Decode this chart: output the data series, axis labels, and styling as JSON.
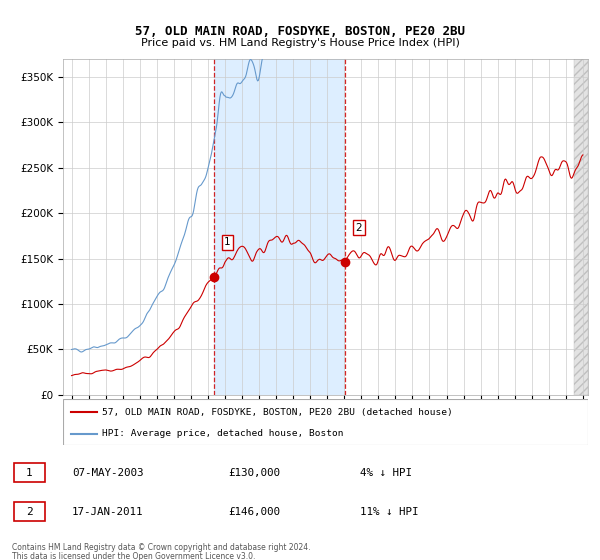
{
  "title1": "57, OLD MAIN ROAD, FOSDYKE, BOSTON, PE20 2BU",
  "title2": "Price paid vs. HM Land Registry's House Price Index (HPI)",
  "ylim": [
    0,
    370000
  ],
  "yticks": [
    0,
    50000,
    100000,
    150000,
    200000,
    250000,
    300000,
    350000
  ],
  "ytick_labels": [
    "£0",
    "£50K",
    "£100K",
    "£150K",
    "£200K",
    "£250K",
    "£300K",
    "£350K"
  ],
  "sale1_price": 130000,
  "sale2_price": 146000,
  "sale1_x": 2003.35,
  "sale2_x": 2011.05,
  "legend_label1": "57, OLD MAIN ROAD, FOSDYKE, BOSTON, PE20 2BU (detached house)",
  "legend_label2": "HPI: Average price, detached house, Boston",
  "footer1": "Contains HM Land Registry data © Crown copyright and database right 2024.",
  "footer2": "This data is licensed under the Open Government Licence v3.0.",
  "table_row1_num": "1",
  "table_row1_date": "07-MAY-2003",
  "table_row1_price": "£130,000",
  "table_row1_pct": "4% ↓ HPI",
  "table_row2_num": "2",
  "table_row2_date": "17-JAN-2011",
  "table_row2_price": "£146,000",
  "table_row2_pct": "11% ↓ HPI",
  "line_color_property": "#cc0000",
  "line_color_hpi": "#6699cc",
  "shaded_region_color": "#ddeeff",
  "grid_color": "#cccccc",
  "background_color": "#ffffff",
  "xmin": 1994.5,
  "xmax": 2025.3,
  "hatch_start": 2024.5
}
